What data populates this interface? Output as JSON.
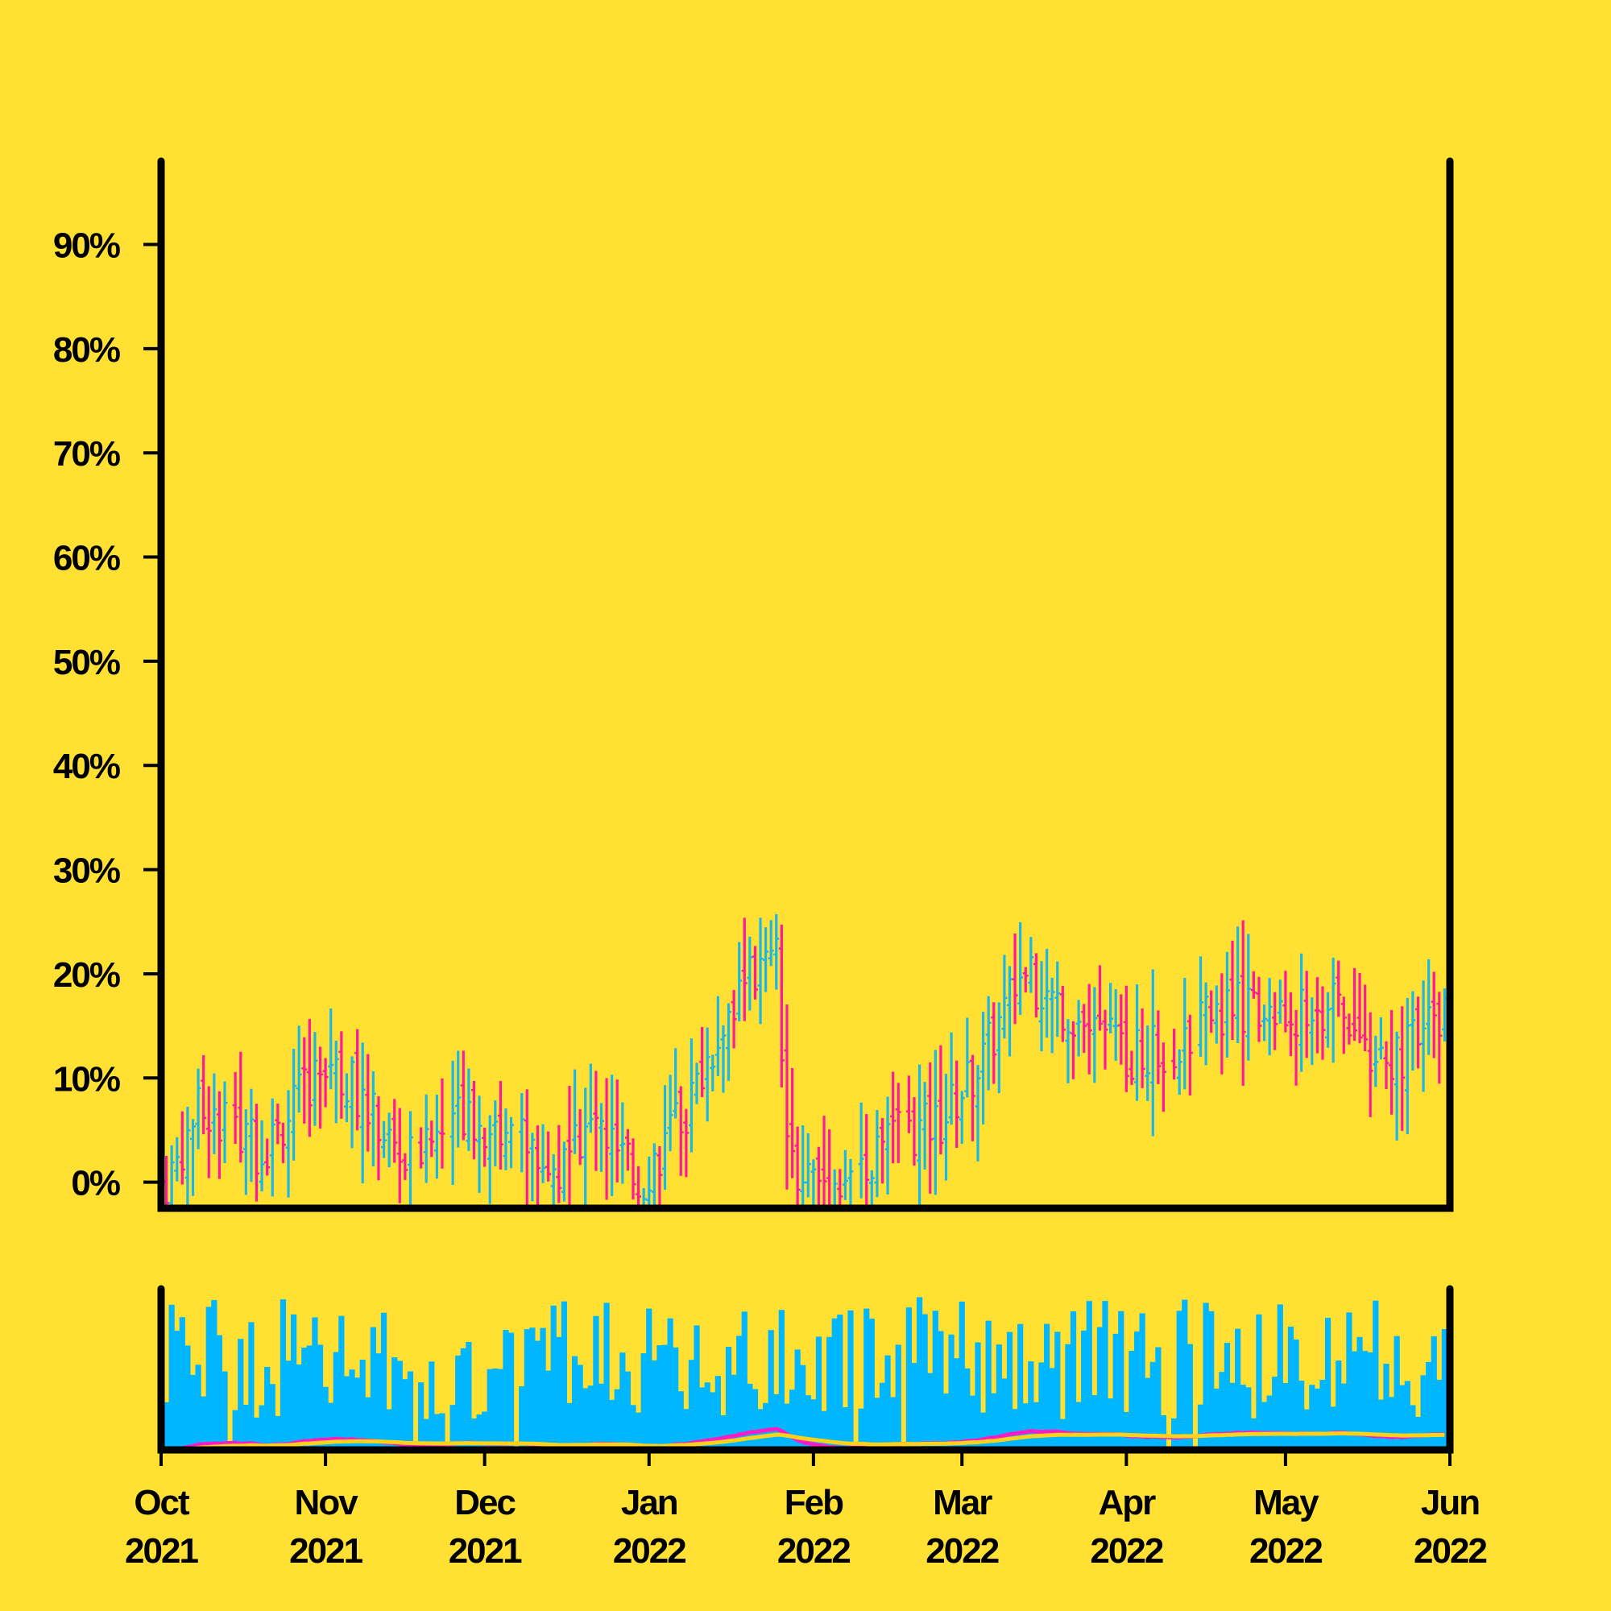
{
  "colors": {
    "background": "#FFE033",
    "axis": "#000000",
    "up": "#1AB8E6",
    "down": "#FF1A9C",
    "volume": "#00B6FF",
    "ma_fast": "#FF1AC8",
    "ma_slow": "#FFD21A"
  },
  "chart_data": {
    "type": "ohlc",
    "title": "",
    "xlabel": "",
    "ylabel": "",
    "price_axis": {
      "ticks": [
        0,
        10,
        20,
        30,
        40,
        50,
        60,
        70,
        80,
        90
      ],
      "tick_labels": [
        "0%",
        "10%",
        "20%",
        "30%",
        "40%",
        "50%",
        "60%",
        "70%",
        "80%",
        "90%"
      ],
      "ylim": [
        -2.5,
        98
      ]
    },
    "time_axis": {
      "start": "2021-10-01",
      "end": "2022-06-01",
      "tick_dates": [
        "2021-10-01",
        "2021-11-01",
        "2021-12-01",
        "2022-01-01",
        "2022-02-01",
        "2022-03-01",
        "2022-04-01",
        "2022-05-01",
        "2022-06-01"
      ],
      "tick_labels": [
        [
          "Oct",
          "2021"
        ],
        [
          "Nov",
          "2021"
        ],
        [
          "Dec",
          "2021"
        ],
        [
          "Jan",
          "2022"
        ],
        [
          "Feb",
          "2022"
        ],
        [
          "Mar",
          "2022"
        ],
        [
          "Apr",
          "2022"
        ],
        [
          "May",
          "2022"
        ],
        [
          "Jun",
          "2022"
        ]
      ]
    },
    "close_trend": {
      "note_dates": [
        "2021-10-01",
        "2021-10-08",
        "2021-10-20",
        "2021-11-01",
        "2021-11-08",
        "2021-11-16",
        "2021-11-25",
        "2021-12-05",
        "2021-12-15",
        "2021-12-22",
        "2021-12-30",
        "2022-01-08",
        "2022-01-16",
        "2022-01-25",
        "2022-01-27",
        "2022-02-05",
        "2022-02-15",
        "2022-02-25",
        "2022-03-05",
        "2022-03-12",
        "2022-03-20",
        "2022-04-01",
        "2022-04-10",
        "2022-04-20",
        "2022-05-01",
        "2022-05-10",
        "2022-05-20",
        "2022-06-01"
      ],
      "values": [
        -1,
        7,
        3,
        12,
        8,
        2,
        6,
        5,
        1,
        6,
        0,
        7,
        17,
        22,
        2,
        0,
        4,
        6,
        12,
        20,
        17,
        12,
        13,
        17,
        16,
        17,
        11,
        17
      ]
    },
    "volume_panel": {
      "ylabel": "",
      "ylim": [
        0,
        100
      ]
    },
    "moving_averages": [
      "fast",
      "slow"
    ]
  }
}
